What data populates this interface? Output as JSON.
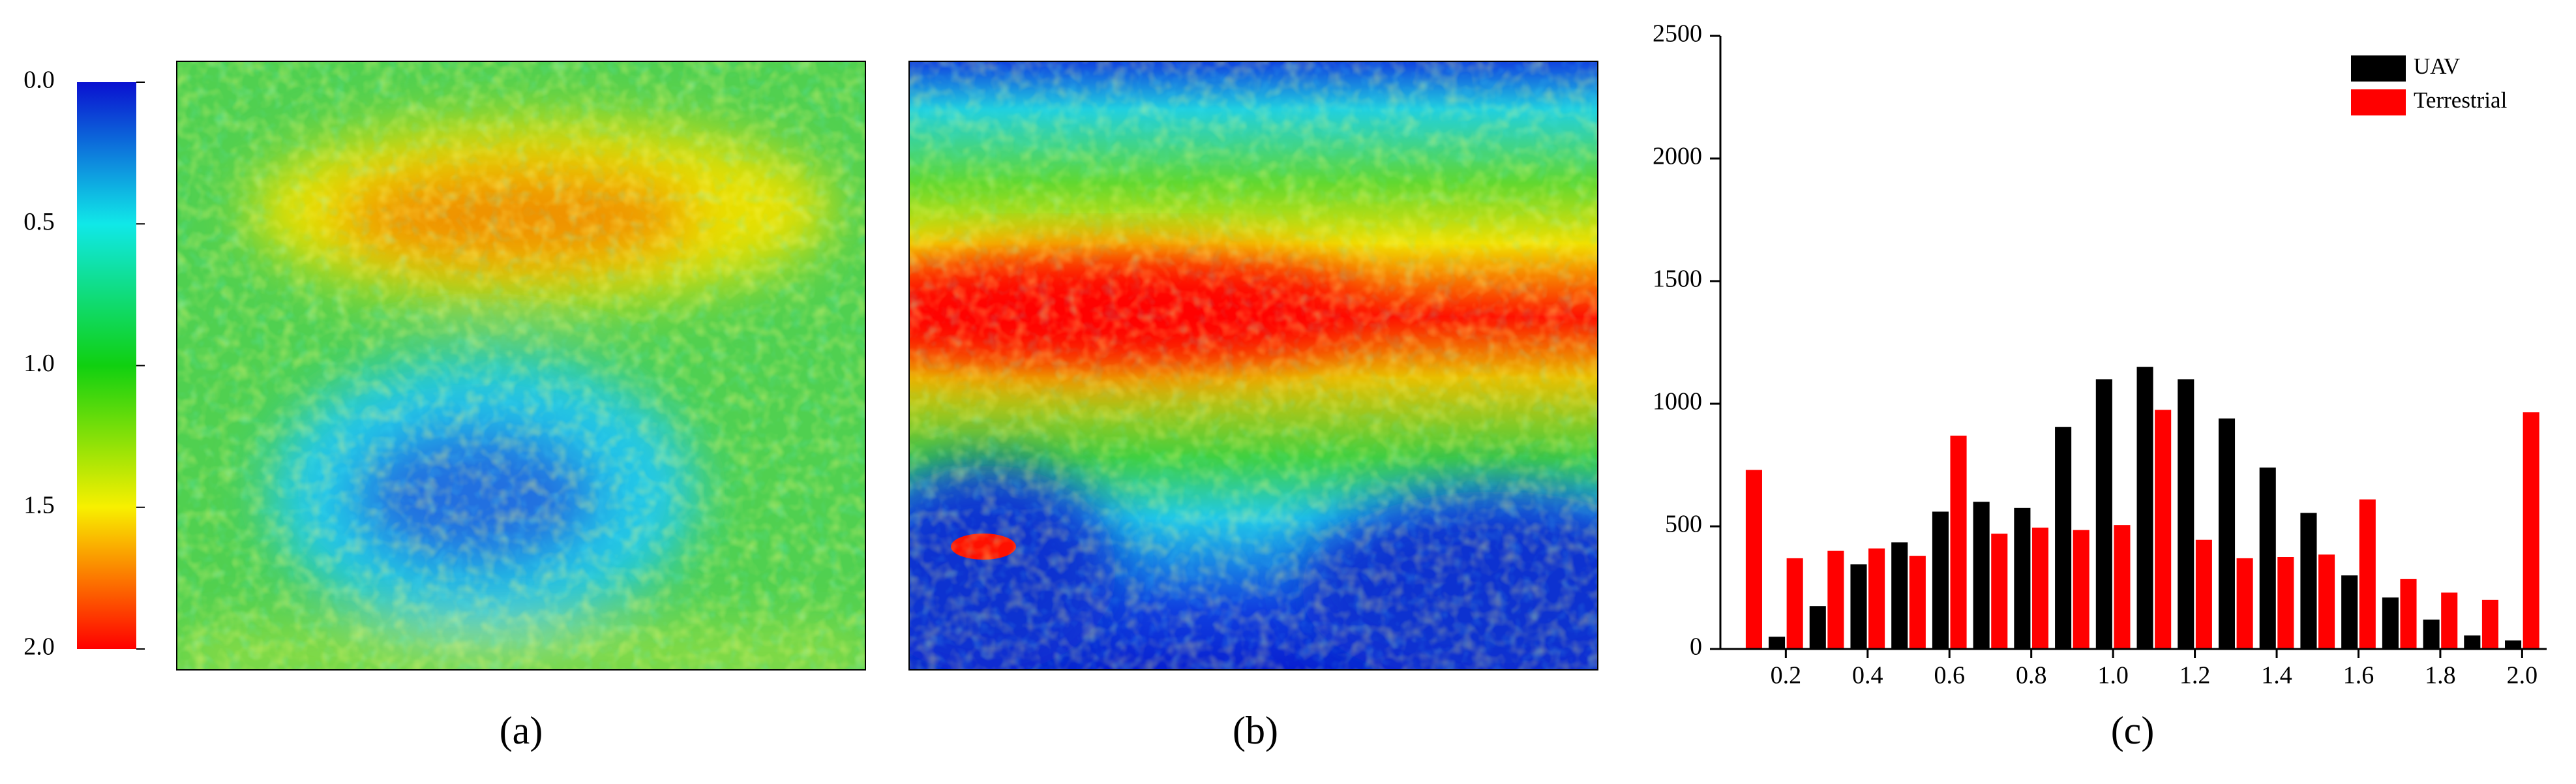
{
  "colorbar": {
    "ticks": [
      {
        "value": 0,
        "label": "0.0"
      },
      {
        "value": 0.5,
        "label": "0.5"
      },
      {
        "value": 1,
        "label": "1.0"
      },
      {
        "value": 1.5,
        "label": "1.5"
      },
      {
        "value": 2,
        "label": "2.0"
      }
    ],
    "lim": [
      0,
      2
    ]
  },
  "panels": {
    "a": "(a)",
    "b": "(b)",
    "c": "(c)"
  },
  "chart_data": {
    "type": "bar",
    "x": [
      0.1,
      0.2,
      0.3,
      0.4,
      0.5,
      0.6,
      0.7,
      0.8,
      0.9,
      1.0,
      1.1,
      1.2,
      1.3,
      1.4,
      1.5,
      1.6,
      1.7,
      1.8,
      1.9,
      2.0
    ],
    "series": [
      {
        "name": "UAV",
        "color": "#000000",
        "values": [
          null,
          50,
          175,
          345,
          435,
          560,
          600,
          575,
          905,
          1100,
          1150,
          1100,
          940,
          740,
          555,
          300,
          210,
          120,
          55,
          35
        ]
      },
      {
        "name": "Terrestrial",
        "color": "#ff0000",
        "values": [
          730,
          370,
          400,
          410,
          380,
          870,
          470,
          495,
          485,
          505,
          975,
          445,
          370,
          375,
          385,
          610,
          285,
          230,
          200,
          965
        ]
      }
    ],
    "xlim": [
      0.04,
      2.06
    ],
    "xticks": [
      0.2,
      0.4,
      0.6,
      0.8,
      {
        "value": 1,
        "label": "1.0"
      },
      1.2,
      1.4,
      1.6,
      1.8,
      {
        "value": 2,
        "label": "2.0"
      }
    ],
    "ylim": [
      0,
      2500
    ],
    "yticks": [
      0,
      500,
      1000,
      1500,
      2000,
      2500
    ],
    "legend": "upper right",
    "grid": false
  }
}
